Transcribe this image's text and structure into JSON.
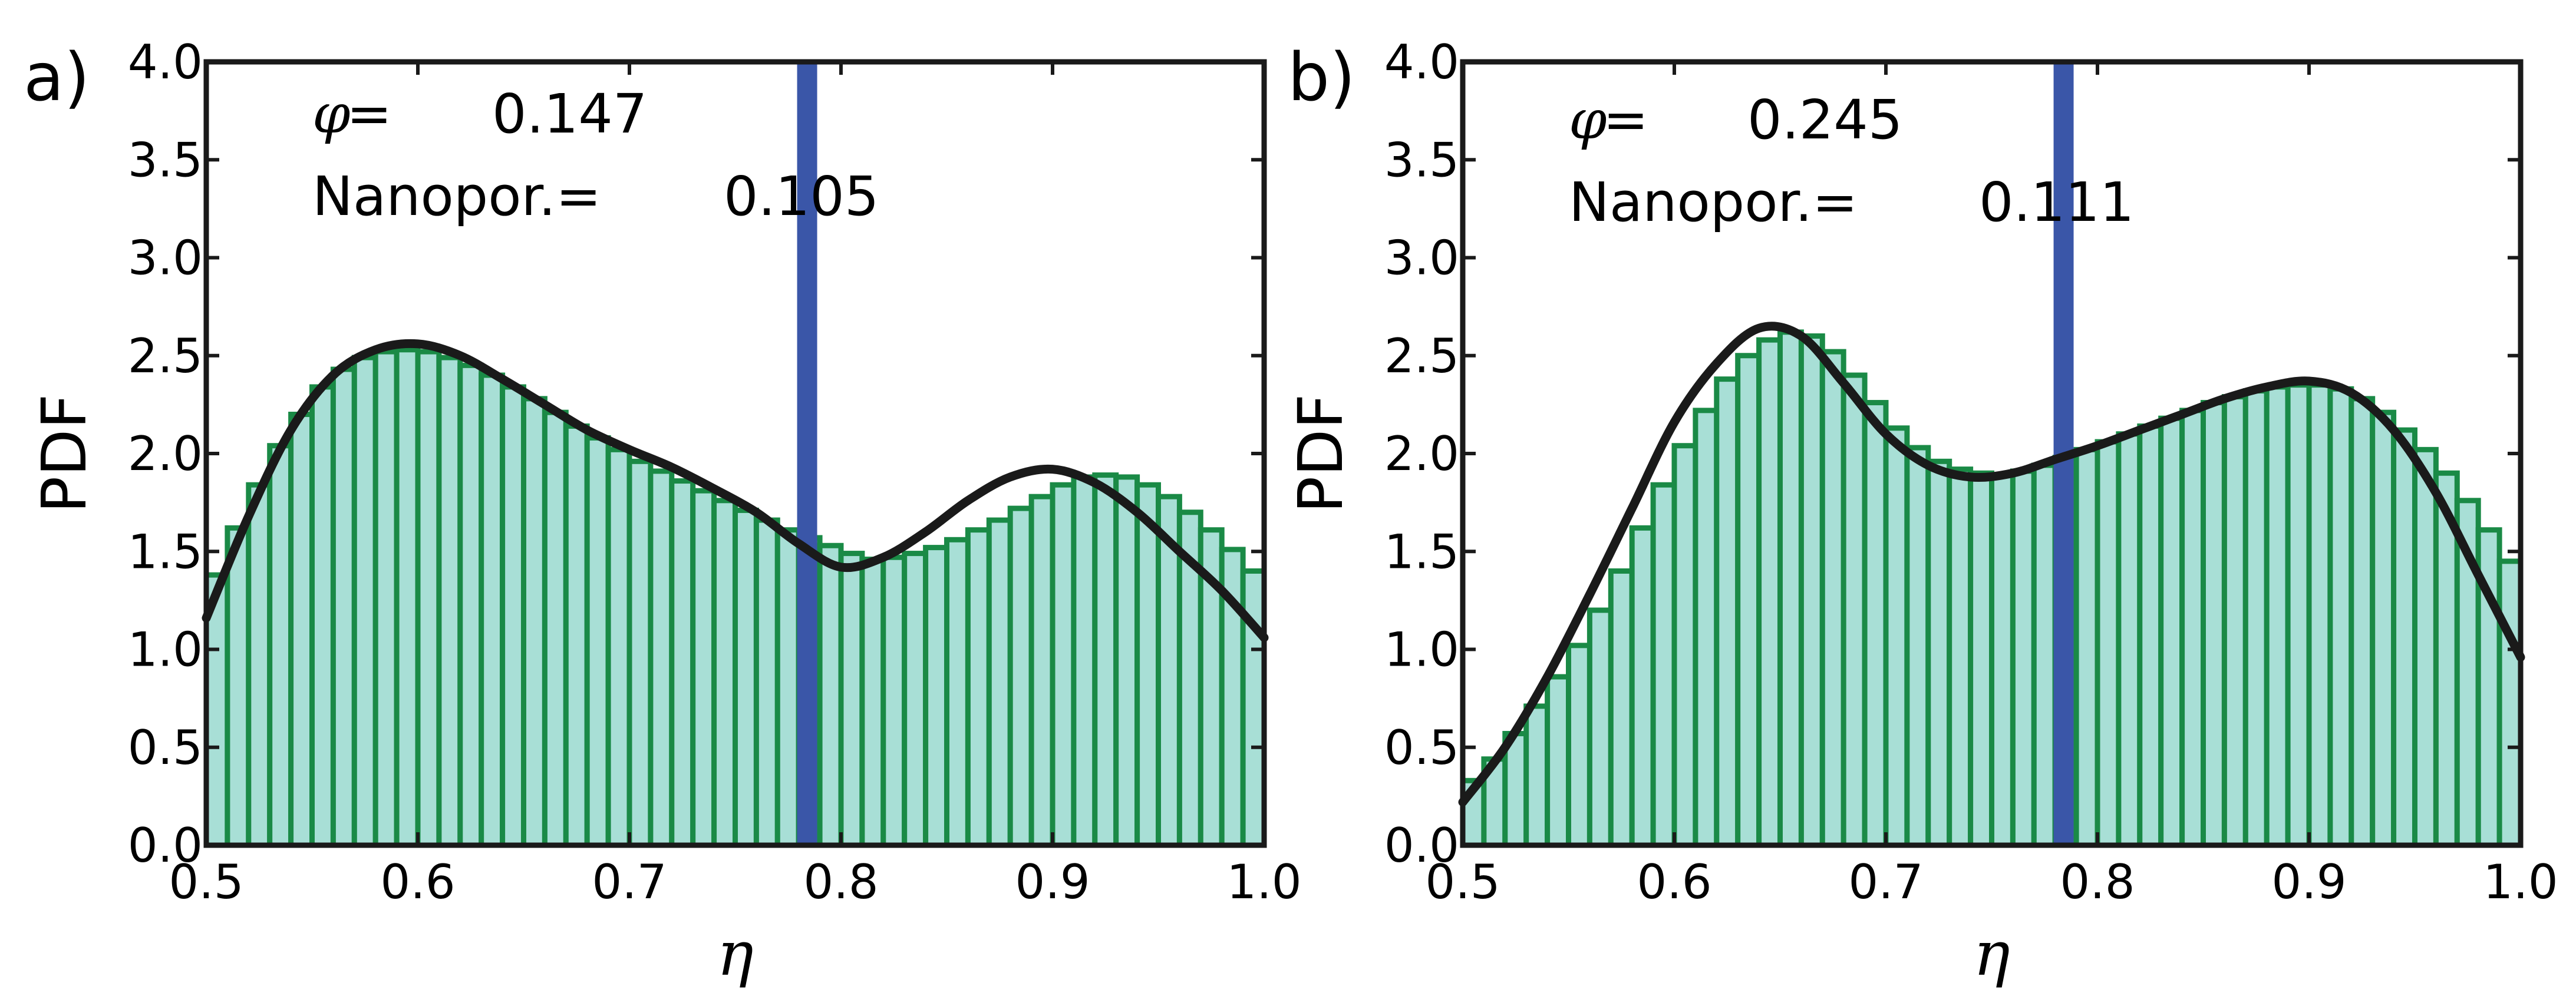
{
  "chart_data": [
    {
      "type": "bar",
      "panel_label": "a)",
      "title": "",
      "xlabel": "η",
      "ylabel": "PDF",
      "xlim": [
        0.5,
        1.0
      ],
      "ylim": [
        0.0,
        4.0
      ],
      "x_ticks": [
        "0.5",
        "0.6",
        "0.7",
        "0.8",
        "0.9",
        "1.0"
      ],
      "y_ticks": [
        "0.0",
        "0.5",
        "1.0",
        "1.5",
        "2.0",
        "2.5",
        "3.0",
        "3.5",
        "4.0"
      ],
      "annotations": {
        "phi_symbol": "φ",
        "phi_eq": "=",
        "phi_value": "0.147",
        "nanopor_label": "Nanopor.=",
        "nanopor_value": "0.105"
      },
      "vline_x": 0.784,
      "bin_width": 0.01,
      "bins_start": 0.5,
      "values": [
        1.38,
        1.62,
        1.84,
        2.04,
        2.2,
        2.34,
        2.43,
        2.49,
        2.52,
        2.53,
        2.52,
        2.49,
        2.45,
        2.4,
        2.34,
        2.28,
        2.21,
        2.14,
        2.08,
        2.02,
        1.96,
        1.91,
        1.86,
        1.81,
        1.76,
        1.71,
        1.66,
        1.61,
        1.57,
        1.53,
        1.49,
        1.46,
        1.47,
        1.49,
        1.52,
        1.56,
        1.61,
        1.66,
        1.72,
        1.78,
        1.84,
        1.88,
        1.89,
        1.88,
        1.84,
        1.78,
        1.7,
        1.61,
        1.51,
        1.4
      ],
      "fit_curve": {
        "x": [
          0.5,
          0.52,
          0.54,
          0.56,
          0.58,
          0.6,
          0.62,
          0.64,
          0.66,
          0.68,
          0.7,
          0.72,
          0.74,
          0.76,
          0.78,
          0.8,
          0.82,
          0.84,
          0.86,
          0.88,
          0.9,
          0.92,
          0.94,
          0.96,
          0.98,
          1.0
        ],
        "y": [
          1.16,
          1.68,
          2.12,
          2.4,
          2.53,
          2.56,
          2.5,
          2.38,
          2.25,
          2.12,
          2.02,
          1.93,
          1.82,
          1.7,
          1.54,
          1.42,
          1.47,
          1.6,
          1.76,
          1.88,
          1.92,
          1.85,
          1.7,
          1.5,
          1.3,
          1.06
        ]
      }
    },
    {
      "type": "bar",
      "panel_label": "b)",
      "title": "",
      "xlabel": "η",
      "ylabel": "PDF",
      "xlim": [
        0.5,
        1.0
      ],
      "ylim": [
        0.0,
        4.0
      ],
      "x_ticks": [
        "0.5",
        "0.6",
        "0.7",
        "0.8",
        "0.9",
        "1.0"
      ],
      "y_ticks": [
        "0.0",
        "0.5",
        "1.0",
        "1.5",
        "2.0",
        "2.5",
        "3.0",
        "3.5",
        "4.0"
      ],
      "annotations": {
        "phi_symbol": "φ",
        "phi_eq": "=",
        "phi_value": "0.245",
        "nanopor_label": "Nanopor.=",
        "nanopor_value": "0.111"
      },
      "vline_x": 0.784,
      "bin_width": 0.01,
      "bins_start": 0.5,
      "values": [
        0.33,
        0.44,
        0.57,
        0.71,
        0.86,
        1.02,
        1.2,
        1.4,
        1.62,
        1.84,
        2.04,
        2.22,
        2.38,
        2.5,
        2.58,
        2.62,
        2.6,
        2.52,
        2.4,
        2.26,
        2.13,
        2.03,
        1.96,
        1.92,
        1.9,
        1.89,
        1.91,
        1.94,
        1.98,
        2.02,
        2.06,
        2.1,
        2.14,
        2.18,
        2.22,
        2.26,
        2.29,
        2.32,
        2.34,
        2.35,
        2.35,
        2.33,
        2.28,
        2.21,
        2.12,
        2.02,
        1.9,
        1.76,
        1.61,
        1.45
      ],
      "fit_curve": {
        "x": [
          0.5,
          0.52,
          0.54,
          0.56,
          0.58,
          0.6,
          0.62,
          0.64,
          0.66,
          0.68,
          0.7,
          0.72,
          0.74,
          0.76,
          0.78,
          0.8,
          0.82,
          0.84,
          0.86,
          0.88,
          0.9,
          0.92,
          0.94,
          0.96,
          0.98,
          1.0
        ],
        "y": [
          0.22,
          0.5,
          0.86,
          1.28,
          1.72,
          2.16,
          2.46,
          2.64,
          2.6,
          2.36,
          2.1,
          1.94,
          1.88,
          1.9,
          1.97,
          2.04,
          2.12,
          2.2,
          2.28,
          2.34,
          2.37,
          2.31,
          2.12,
          1.8,
          1.38,
          0.96
        ]
      }
    }
  ],
  "style": {
    "bar_fill": "#a8dfd6",
    "bar_edge": "#1a8a46",
    "fit_color": "#1a1a1a",
    "vline_color": "#3a56a8",
    "axis_color": "#1a1a1a"
  }
}
